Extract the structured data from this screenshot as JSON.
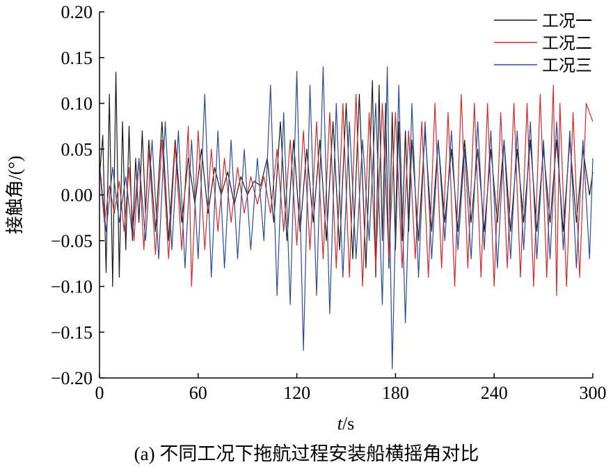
{
  "caption": "(a) 不同工况下拖航过程安装船横摇角对比",
  "chart_data": {
    "type": "line",
    "title": "",
    "xlabel_italic": "t",
    "xlabel_unit": "/s",
    "ylabel": "接触角/(°)",
    "xlim": [
      0,
      300
    ],
    "ylim": [
      -0.2,
      0.2
    ],
    "x_ticks": [
      0,
      60,
      120,
      180,
      240,
      300
    ],
    "x_tick_labels": [
      "0",
      "60",
      "120",
      "180",
      "240",
      "300"
    ],
    "y_ticks": [
      0.2,
      0.15,
      0.1,
      0.05,
      0.0,
      -0.05,
      -0.1,
      -0.15,
      -0.2
    ],
    "y_tick_labels": [
      "0.20",
      "0.15",
      "0.10",
      "0.05",
      "0.00",
      "−0.05",
      "−0.10",
      "−0.15",
      "−0.20"
    ],
    "grid": false,
    "legend_position": "top-right",
    "series": [
      {
        "name": "工况一",
        "color": "#1a1a1a",
        "x": [
          0,
          2,
          4,
          6,
          8,
          10,
          12,
          14,
          16,
          18,
          20,
          22,
          24,
          26,
          28,
          30,
          34,
          38,
          42,
          46,
          50,
          54,
          58,
          62,
          66,
          70,
          74,
          78,
          82,
          86,
          90,
          94,
          98,
          102,
          106,
          110,
          114,
          118,
          122,
          126,
          130,
          134,
          138,
          142,
          146,
          150,
          154,
          158,
          162,
          166,
          168,
          170,
          172,
          174,
          176,
          178,
          180,
          182,
          184,
          186,
          188,
          190,
          194,
          198,
          202,
          206,
          210,
          214,
          218,
          222,
          226,
          230,
          234,
          238,
          242,
          246,
          250,
          254,
          258,
          262,
          266,
          270,
          274,
          278,
          282,
          286,
          290,
          294,
          298,
          300
        ],
        "values": [
          0.02,
          0.065,
          -0.085,
          0.11,
          -0.1,
          0.134,
          -0.09,
          0.08,
          -0.06,
          0.075,
          -0.05,
          0.04,
          -0.03,
          0.07,
          -0.02,
          0.06,
          -0.04,
          0.08,
          -0.05,
          0.06,
          -0.03,
          0.04,
          -0.01,
          0.05,
          -0.02,
          0.03,
          0.0,
          0.025,
          -0.01,
          0.02,
          0.0,
          0.015,
          0.01,
          0.04,
          -0.03,
          0.08,
          -0.05,
          0.06,
          -0.04,
          0.05,
          -0.03,
          0.06,
          -0.05,
          0.08,
          -0.06,
          0.1,
          -0.07,
          0.11,
          -0.08,
          0.125,
          -0.09,
          0.12,
          -0.05,
          0.1,
          -0.08,
          0.09,
          -0.06,
          0.08,
          -0.05,
          0.07,
          -0.04,
          0.06,
          -0.05,
          0.07,
          -0.04,
          0.06,
          -0.03,
          0.05,
          -0.04,
          0.06,
          -0.03,
          0.05,
          -0.04,
          0.05,
          -0.03,
          0.06,
          -0.04,
          0.05,
          -0.03,
          0.06,
          -0.04,
          0.05,
          -0.03,
          0.06,
          -0.04,
          0.06,
          -0.03,
          0.05,
          0.0,
          0.025
        ]
      },
      {
        "name": "工况二",
        "color": "#d62728",
        "x": [
          0,
          3,
          6,
          9,
          12,
          15,
          18,
          21,
          24,
          27,
          30,
          34,
          38,
          42,
          46,
          50,
          54,
          56,
          60,
          64,
          68,
          72,
          76,
          80,
          84,
          88,
          92,
          96,
          100,
          104,
          108,
          112,
          116,
          120,
          124,
          128,
          132,
          136,
          140,
          144,
          148,
          152,
          156,
          160,
          164,
          168,
          172,
          176,
          180,
          184,
          188,
          192,
          196,
          200,
          204,
          208,
          212,
          216,
          220,
          224,
          228,
          232,
          236,
          240,
          244,
          248,
          252,
          256,
          260,
          264,
          268,
          272,
          276,
          278,
          280,
          284,
          288,
          292,
          296,
          300
        ],
        "values": [
          0.03,
          -0.03,
          0.01,
          -0.02,
          0.015,
          -0.04,
          0.03,
          -0.05,
          0.04,
          -0.06,
          0.05,
          -0.065,
          0.06,
          -0.07,
          0.055,
          -0.06,
          0.075,
          -0.1,
          0.07,
          -0.06,
          0.05,
          -0.04,
          0.04,
          -0.03,
          0.03,
          -0.02,
          0.02,
          -0.01,
          0.02,
          -0.02,
          0.05,
          -0.04,
          0.06,
          -0.055,
          0.07,
          -0.06,
          0.08,
          -0.07,
          0.09,
          -0.08,
          0.1,
          -0.09,
          0.11,
          -0.1,
          0.09,
          -0.08,
          0.1,
          -0.07,
          0.09,
          -0.08,
          0.07,
          -0.07,
          0.08,
          -0.09,
          0.1,
          -0.08,
          0.09,
          -0.1,
          0.11,
          -0.08,
          0.1,
          -0.09,
          0.1,
          -0.1,
          0.09,
          -0.08,
          0.1,
          -0.09,
          0.1,
          -0.1,
          0.11,
          -0.09,
          0.12,
          -0.11,
          0.1,
          -0.1,
          0.09,
          -0.09,
          0.1,
          0.08
        ]
      },
      {
        "name": "工况三",
        "color": "#2c4a9a",
        "x": [
          0,
          4,
          8,
          12,
          16,
          20,
          24,
          28,
          32,
          36,
          40,
          44,
          48,
          52,
          56,
          60,
          64,
          68,
          72,
          76,
          80,
          84,
          88,
          92,
          96,
          100,
          104,
          108,
          112,
          116,
          120,
          124,
          128,
          132,
          136,
          140,
          144,
          148,
          152,
          156,
          160,
          164,
          168,
          172,
          175,
          178,
          182,
          186,
          190,
          194,
          198,
          202,
          206,
          210,
          214,
          218,
          222,
          226,
          230,
          234,
          238,
          242,
          246,
          250,
          254,
          258,
          262,
          266,
          270,
          274,
          278,
          282,
          286,
          290,
          294,
          298,
          300
        ],
        "values": [
          0.035,
          -0.04,
          0.03,
          -0.03,
          0.02,
          -0.045,
          0.04,
          -0.05,
          0.06,
          -0.07,
          0.08,
          -0.06,
          0.07,
          -0.08,
          0.06,
          -0.07,
          0.11,
          -0.09,
          0.07,
          -0.08,
          0.06,
          -0.07,
          0.05,
          -0.06,
          0.04,
          -0.05,
          0.12,
          -0.11,
          0.09,
          -0.12,
          0.135,
          -0.17,
          0.12,
          -0.11,
          0.14,
          -0.13,
          0.1,
          -0.09,
          0.08,
          -0.07,
          0.06,
          -0.05,
          0.1,
          -0.12,
          0.14,
          -0.19,
          0.12,
          -0.14,
          0.1,
          -0.09,
          0.08,
          -0.07,
          0.06,
          -0.05,
          0.07,
          -0.06,
          0.05,
          -0.07,
          0.08,
          -0.06,
          0.07,
          -0.08,
          0.06,
          -0.07,
          0.07,
          -0.06,
          0.08,
          -0.07,
          0.06,
          -0.07,
          0.08,
          -0.06,
          0.07,
          -0.08,
          0.06,
          -0.07,
          0.04
        ]
      }
    ]
  }
}
